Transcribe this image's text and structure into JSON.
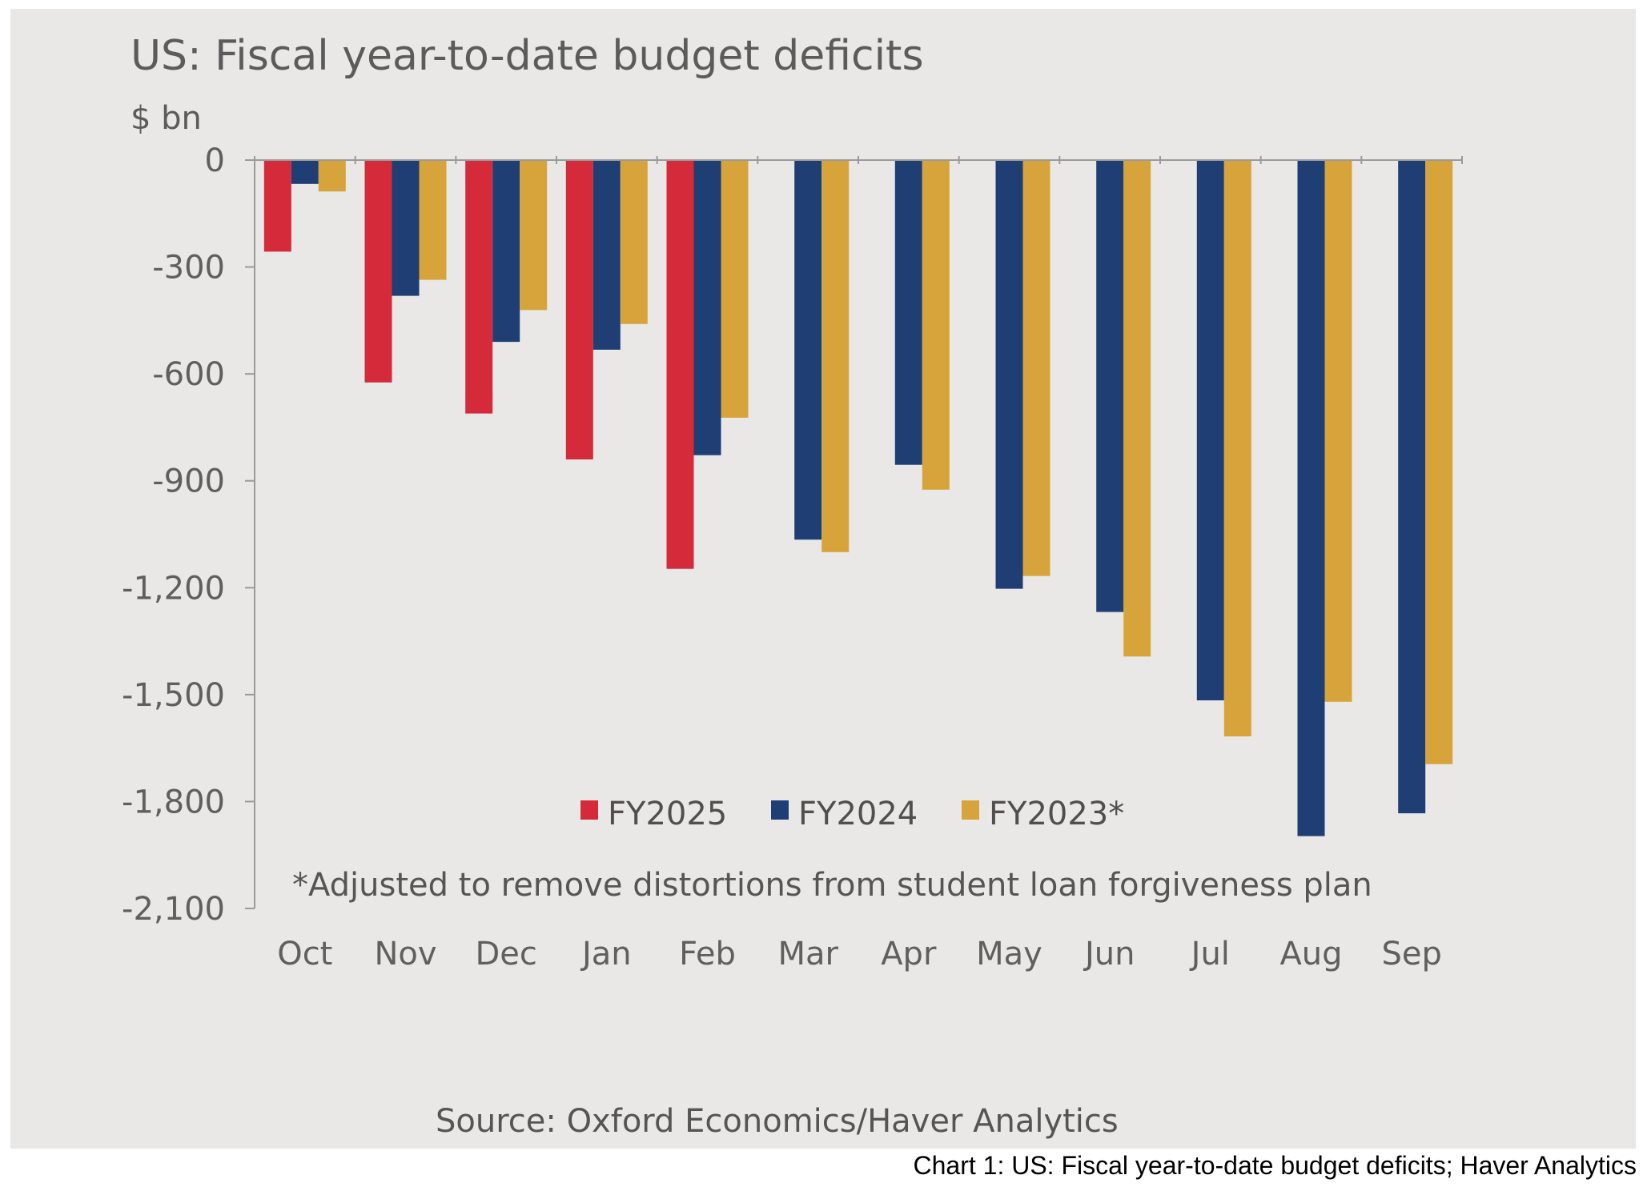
{
  "chart_data": {
    "type": "bar",
    "title": "US: Fiscal year-to-date budget deficits",
    "ylabel": "$ bn",
    "ylim": [
      -2100,
      0
    ],
    "yticks": [
      0,
      -300,
      -600,
      -900,
      -1200,
      -1500,
      -1800,
      -2100
    ],
    "ytick_labels": [
      "0",
      "-300",
      "-600",
      "-900",
      "-1,200",
      "-1,500",
      "-1,800",
      "-2,100"
    ],
    "categories": [
      "Oct",
      "Nov",
      "Dec",
      "Jan",
      "Feb",
      "Mar",
      "Apr",
      "May",
      "Jun",
      "Jul",
      "Aug",
      "Sep"
    ],
    "series": [
      {
        "name": "FY2025",
        "color": "#d42a3a",
        "values": [
          -257,
          -624,
          -711,
          -840,
          -1147,
          null,
          null,
          null,
          null,
          null,
          null,
          null
        ]
      },
      {
        "name": "FY2024",
        "color": "#1f3e73",
        "values": [
          -67,
          -381,
          -510,
          -532,
          -828,
          -1065,
          -855,
          -1203,
          -1268,
          -1516,
          -1897,
          -1833
        ]
      },
      {
        "name": "FY2023*",
        "color": "#d6a43a",
        "values": [
          -88,
          -336,
          -421,
          -460,
          -723,
          -1100,
          -925,
          -1167,
          -1393,
          -1617,
          -1520,
          -1695
        ]
      }
    ],
    "legend_position": "bottom-center (inside plot)",
    "grid": false,
    "annotation": "*Adjusted to remove distortions from student loan forgiveness plan",
    "source": "Source: Oxford Economics/Haver Analytics"
  },
  "caption": "Chart 1: US: Fiscal year-to-date budget deficits; Haver Analytics"
}
